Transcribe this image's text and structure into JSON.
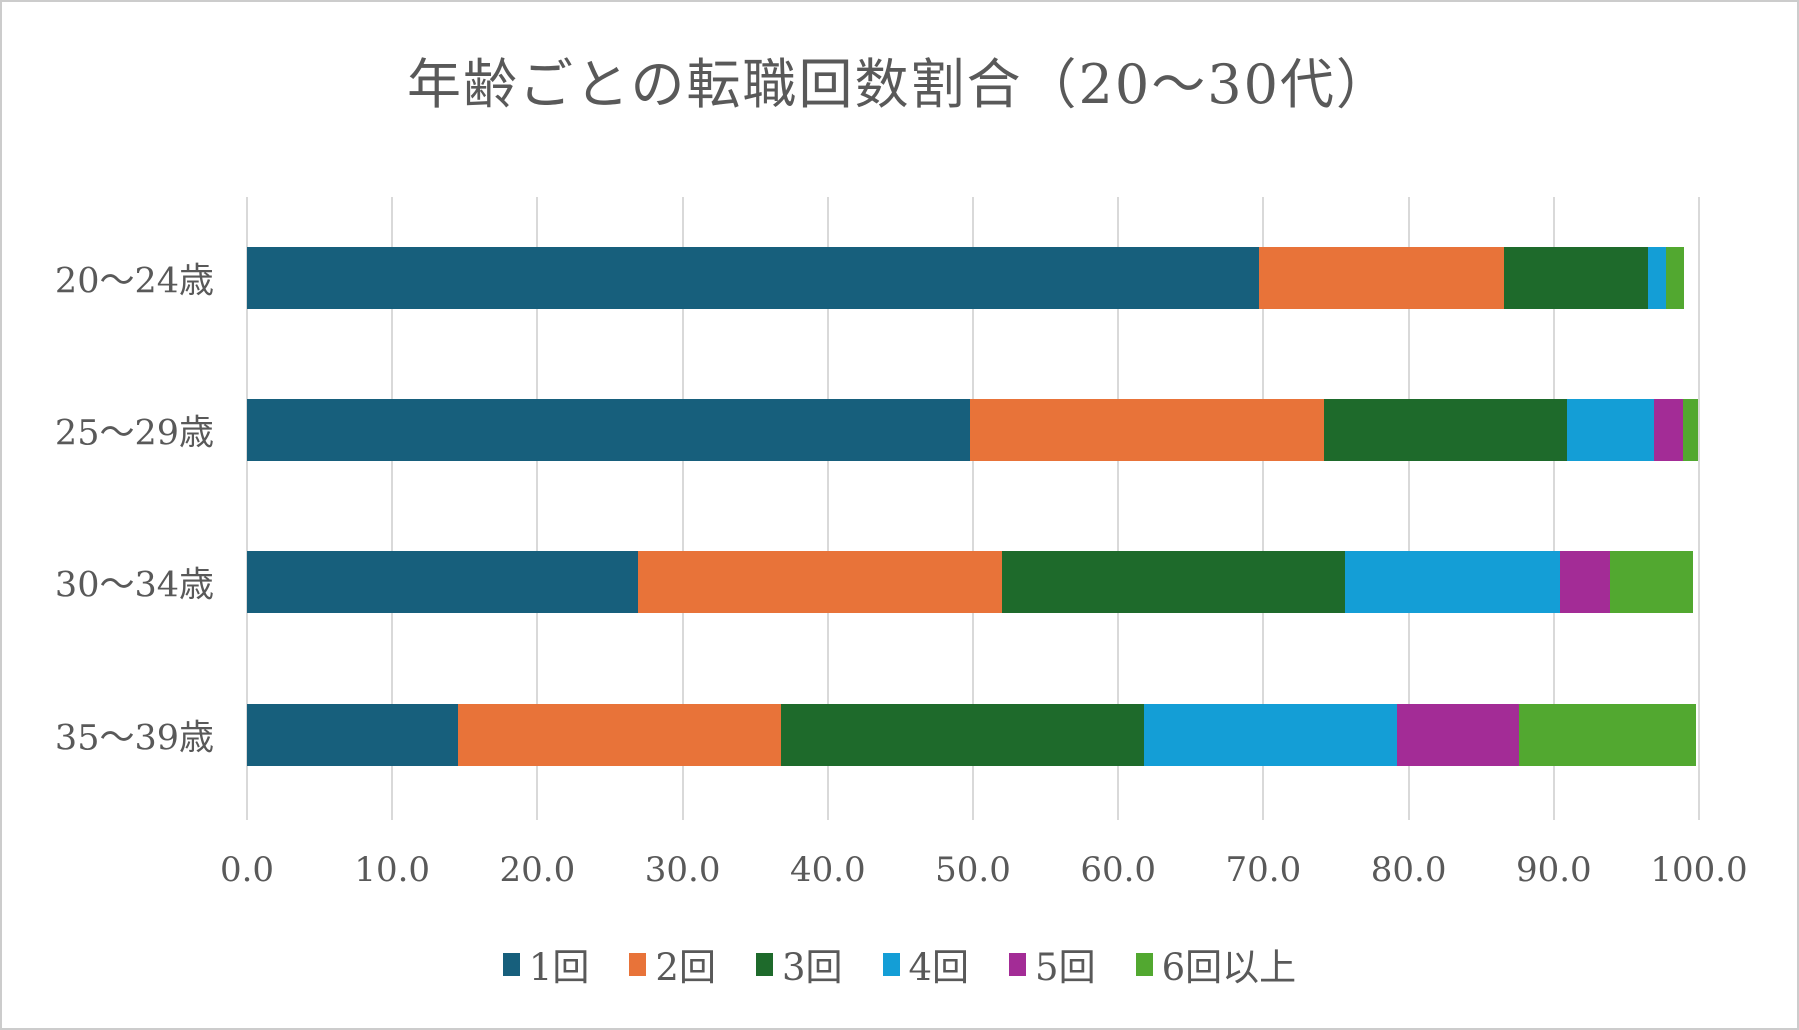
{
  "title": "年齢ごとの転職回数割合（20〜30代）",
  "chart_data": {
    "type": "bar",
    "orientation": "horizontal",
    "stacked": true,
    "title": "年齢ごとの転職回数割合（20〜30代）",
    "categories": [
      "20〜24歳",
      "25〜29歳",
      "30〜34歳",
      "35〜39歳"
    ],
    "series": [
      {
        "name": "1回",
        "color": "#175f7c",
        "values": [
          69.7,
          49.8,
          26.9,
          14.5
        ]
      },
      {
        "name": "2回",
        "color": "#e87339",
        "values": [
          16.9,
          24.4,
          25.1,
          22.3
        ]
      },
      {
        "name": "3回",
        "color": "#1e6a2b",
        "values": [
          9.9,
          16.7,
          23.6,
          25.0
        ]
      },
      {
        "name": "4回",
        "color": "#149ed6",
        "values": [
          1.2,
          6.0,
          14.8,
          17.4
        ]
      },
      {
        "name": "5回",
        "color": "#a32c96",
        "values": [
          0.0,
          2.0,
          3.5,
          8.4
        ]
      },
      {
        "name": "6回以上",
        "color": "#52a830",
        "values": [
          1.3,
          1.0,
          5.7,
          12.2
        ]
      }
    ],
    "xlabel": "",
    "ylabel": "",
    "xlim": [
      0,
      100
    ],
    "x_ticks": [
      "0.0",
      "10.0",
      "20.0",
      "30.0",
      "40.0",
      "50.0",
      "60.0",
      "70.0",
      "80.0",
      "90.0",
      "100.0"
    ],
    "grid": true,
    "legend_position": "bottom"
  },
  "style": {
    "text_color": "#595959",
    "gridline_color": "#d9d9d9",
    "background": "#ffffff"
  }
}
